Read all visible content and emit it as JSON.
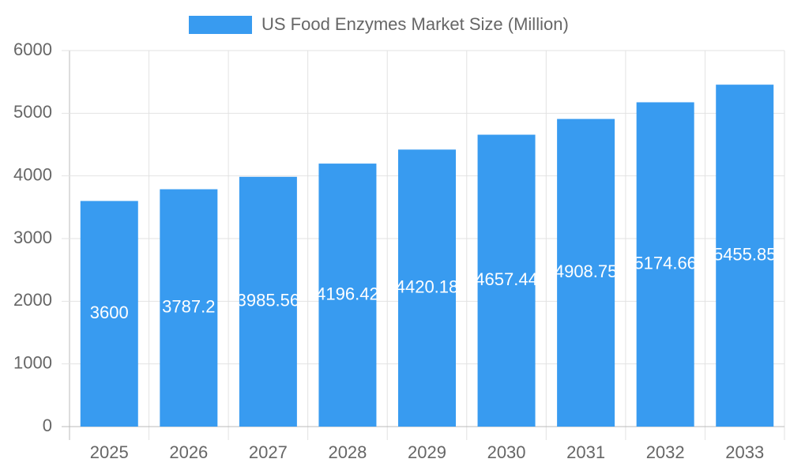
{
  "chart_data": {
    "type": "bar",
    "categories": [
      "2025",
      "2026",
      "2027",
      "2028",
      "2029",
      "2030",
      "2031",
      "2032",
      "2033"
    ],
    "series": [
      {
        "name": "US Food Enzymes Market Size (Million)",
        "color": "#389bf0",
        "values": [
          3600,
          3787.2,
          3985.56,
          4196.42,
          4420.18,
          4657.44,
          4908.75,
          5174.66,
          5455.85
        ]
      }
    ],
    "ylim": [
      0,
      6000
    ],
    "yticks": [
      0,
      1000,
      2000,
      3000,
      4000,
      5000,
      6000
    ],
    "grid": true,
    "legend": "top",
    "data_labels": true
  }
}
